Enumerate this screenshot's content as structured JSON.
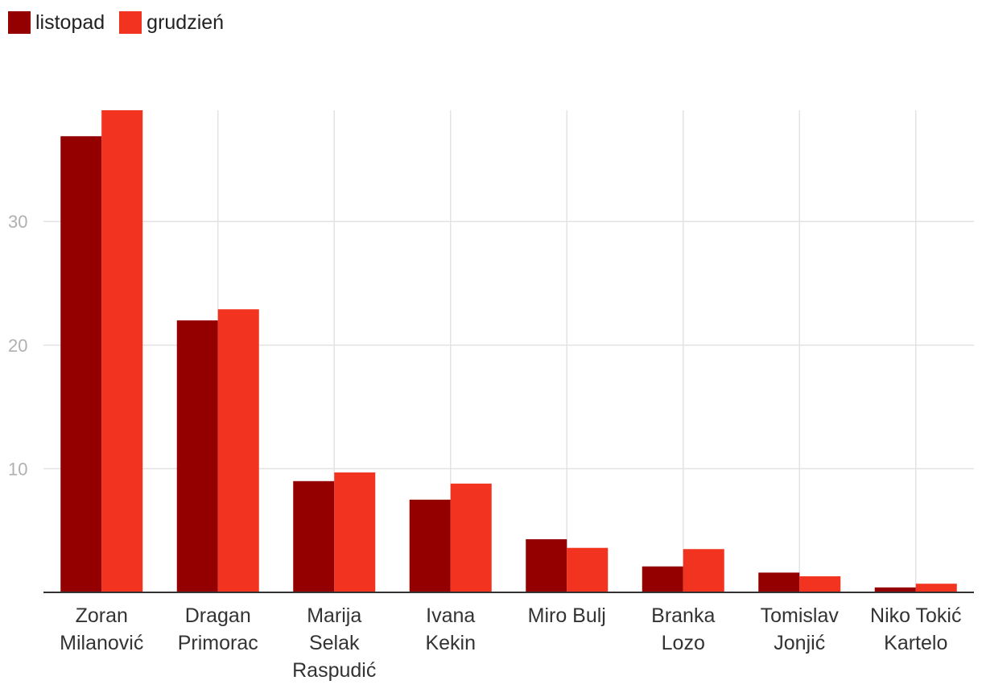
{
  "chart_data": {
    "type": "bar",
    "categories": [
      [
        "Zoran",
        "Milanović"
      ],
      [
        "Dragan",
        "Primorac"
      ],
      [
        "Marija",
        "Selak",
        "Raspudić"
      ],
      [
        "Ivana",
        "Kekin"
      ],
      [
        "Miro Bulj"
      ],
      [
        "Branka",
        "Lozo"
      ],
      [
        "Tomislav",
        "Jonjić"
      ],
      [
        "Niko Tokić",
        "Kartelo"
      ]
    ],
    "series": [
      {
        "name": "listopad",
        "color": "#940000",
        "values": [
          36.9,
          22.0,
          9.0,
          7.5,
          4.3,
          2.1,
          1.6,
          0.4
        ]
      },
      {
        "name": "grudzień",
        "color": "#f13320",
        "values": [
          39.0,
          22.9,
          9.7,
          8.8,
          3.6,
          3.5,
          1.3,
          0.7
        ]
      }
    ],
    "yticks": [
      10,
      20,
      30
    ],
    "ylim": [
      0,
      39
    ],
    "grid": true,
    "legend_position": "top-left"
  }
}
